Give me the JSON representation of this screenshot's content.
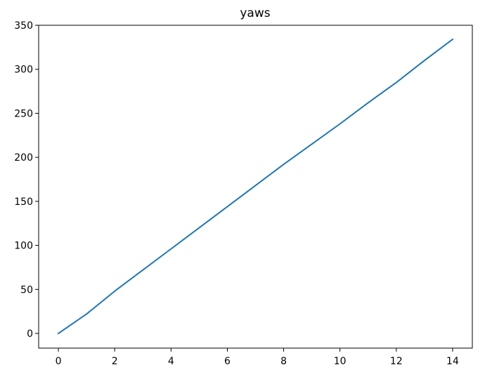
{
  "chart_data": {
    "type": "line",
    "title": "yaws",
    "xlabel": "",
    "ylabel": "",
    "xlim": [
      -0.7,
      14.7
    ],
    "ylim": [
      -16.7,
      350
    ],
    "x_ticks": [
      0,
      2,
      4,
      6,
      8,
      10,
      12,
      14
    ],
    "y_ticks": [
      0,
      50,
      100,
      150,
      200,
      250,
      300,
      350
    ],
    "grid": false,
    "legend": "none",
    "series": [
      {
        "color": "#1f77b4",
        "x": [
          0,
          1,
          2,
          3,
          4,
          5,
          6,
          7,
          8,
          9,
          10,
          11,
          12,
          13,
          14
        ],
        "y": [
          0,
          22,
          48,
          72,
          96,
          120,
          144,
          168,
          192,
          215,
          238,
          262,
          285,
          310,
          334
        ]
      }
    ]
  }
}
